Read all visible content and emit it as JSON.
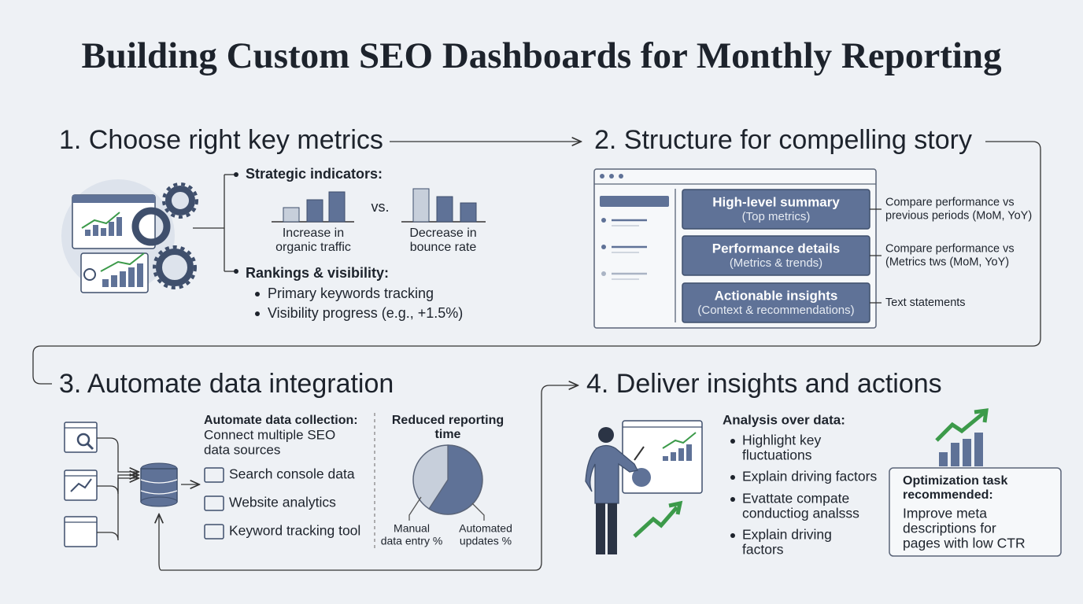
{
  "title": "Building Custom SEO Dashboards for Monthly Reporting",
  "section_1": {
    "heading": "1. Choose right key metrics",
    "strategic_label": "Strategic indicators:",
    "vs": "vs.",
    "chart_labels": [
      [
        "Increase in",
        "organic traffic"
      ],
      [
        "Decrease in",
        "bounce rate"
      ]
    ],
    "rankings_label": "Rankings & visibility:",
    "rankings_items": [
      "Primary keywords tracking",
      "Visibility progress (e.g., +1.5%)"
    ]
  },
  "section_2": {
    "heading": "2. Structure for compelling story",
    "rows": [
      {
        "title": "High-level summary",
        "subtitle": "(Top metrics)",
        "note": [
          "Compare performance vs",
          "previous periods (MoM, YoY)"
        ]
      },
      {
        "title": "Performance details",
        "subtitle": "(Metrics & trends)",
        "note": [
          "Compare performance vs",
          "(Metrics tws (MoM, YoY)"
        ]
      },
      {
        "title": "Actionable insights",
        "subtitle": "(Context & recommendations)",
        "note": [
          "Text statements"
        ]
      }
    ]
  },
  "section_3": {
    "heading": "3. Automate data integration",
    "collect_label": "Automate data collection:",
    "collect_desc": [
      "Connect multiple SEO",
      "data sources"
    ],
    "sources": [
      "Search console data",
      "Website analytics",
      "Keyword tracking tool"
    ],
    "reduced_label": [
      "Reduced reporting",
      "time"
    ],
    "pie_labels": [
      [
        "Manual",
        "data entry %"
      ],
      [
        "Automated",
        "updates %"
      ]
    ]
  },
  "section_4": {
    "heading": "4. Deliver insights and actions",
    "analysis_label": "Analysis over data:",
    "items": [
      [
        "Highlight key",
        "fluctuations"
      ],
      [
        "Explain driving factors"
      ],
      [
        "Evattate compate",
        "conductiog analsss"
      ],
      [
        "Explain driving",
        "factors"
      ]
    ],
    "task_label": [
      "Optimization task",
      "recommended:"
    ],
    "task_text": [
      "Improve meta",
      "descriptions for",
      "pages with low CTR"
    ]
  }
}
